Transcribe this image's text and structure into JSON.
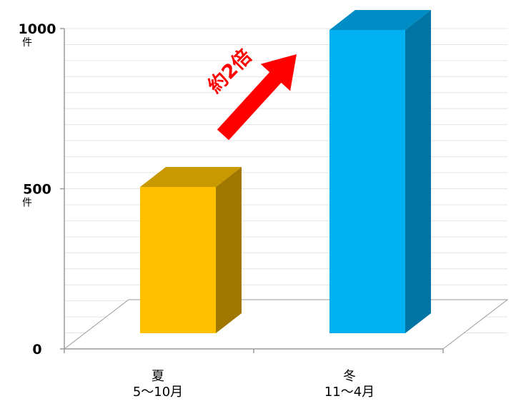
{
  "chart_data": {
    "type": "bar",
    "categories": [
      "夏",
      "冬"
    ],
    "category_sublabels": [
      "5〜10月",
      "11〜4月"
    ],
    "values": [
      510,
      1000
    ],
    "ylim": [
      0,
      1000
    ],
    "yticks": [
      {
        "value": 0,
        "label": "0",
        "unit": ""
      },
      {
        "value": 500,
        "label": "500",
        "unit": "件"
      },
      {
        "value": 1000,
        "label": "1000",
        "unit": "件"
      }
    ],
    "colors": {
      "front": [
        "#ffc000",
        "#00b0f0"
      ],
      "side": [
        "#a07800",
        "#0074a4"
      ],
      "top": [
        "#c89a00",
        "#008dc5"
      ]
    },
    "grid": true,
    "annotation": {
      "text": "約2倍",
      "arrow_color": "#ff0000"
    }
  }
}
